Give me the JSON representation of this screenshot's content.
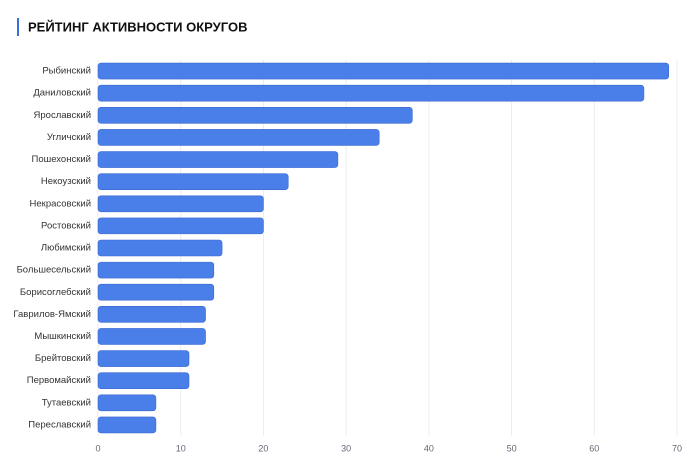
{
  "chart_data": {
    "type": "bar",
    "orientation": "horizontal",
    "title": "РЕЙТИНГ АКТИВНОСТИ ОКРУГОВ",
    "categories": [
      "Рыбинский",
      "Даниловский",
      "Ярославский",
      "Угличский",
      "Пошехонский",
      "Некоузский",
      "Некрасовский",
      "Ростовский",
      "Любимский",
      "Большесельский",
      "Борисоглебский",
      "Гаврилов-Ямский",
      "Мышкинский",
      "Брейтовский",
      "Первомайский",
      "Тутаевский",
      "Переславский"
    ],
    "values": [
      69,
      66,
      38,
      34,
      29,
      23,
      20,
      20,
      15,
      14,
      14,
      13,
      13,
      11,
      11,
      7,
      7
    ],
    "color": "#4a7ee9",
    "xlim": [
      0,
      70
    ],
    "xticks": [
      0,
      10,
      20,
      30,
      40,
      50,
      60,
      70
    ],
    "grid": true
  }
}
